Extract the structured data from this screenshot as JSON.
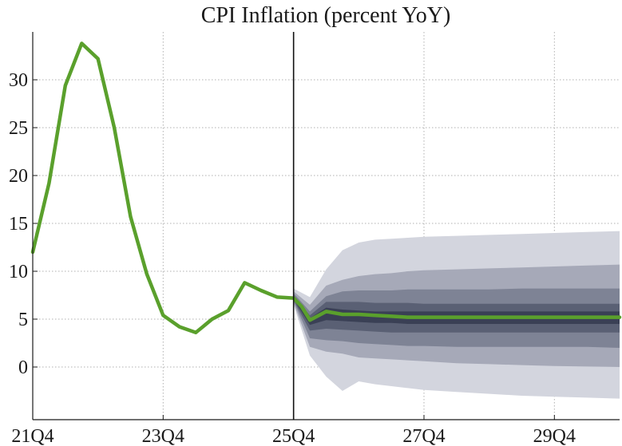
{
  "chart_data": {
    "type": "line",
    "title": "CPI Inflation (percent YoY)",
    "xlabel": "",
    "ylabel": "",
    "x_ticks": [
      "21Q4",
      "23Q4",
      "25Q4",
      "27Q4",
      "29Q4"
    ],
    "y_ticks": [
      0,
      5,
      10,
      15,
      20,
      25,
      30
    ],
    "xlim": [
      0,
      36
    ],
    "ylim": [
      -5.5,
      35
    ],
    "forecast_start": 16,
    "grid": true,
    "series": [
      {
        "name": "CPI inflation",
        "color": "#5aa02c",
        "x": [
          0,
          1,
          2,
          3,
          4,
          5,
          6,
          7,
          8,
          9,
          10,
          11,
          12,
          13,
          14,
          15,
          16,
          16.5,
          17,
          18,
          19,
          20,
          21,
          22,
          23,
          24,
          25,
          26,
          27,
          28,
          29,
          30,
          31,
          32,
          33,
          34,
          35,
          36
        ],
        "values": [
          12,
          19.2,
          29.4,
          33.8,
          32.2,
          25,
          15.7,
          9.7,
          5.4,
          4.2,
          3.6,
          5,
          5.9,
          8.8,
          8,
          7.3,
          7.2,
          6.3,
          4.9,
          5.8,
          5.5,
          5.5,
          5.4,
          5.3,
          5.2,
          5.2,
          5.2,
          5.2,
          5.2,
          5.2,
          5.2,
          5.2,
          5.2,
          5.2,
          5.2,
          5.2,
          5.2,
          5.2
        ]
      }
    ],
    "fan_chart": {
      "x": [
        16,
        17,
        18,
        19,
        20,
        21,
        22,
        23,
        24,
        26,
        28,
        30,
        32,
        34,
        36
      ],
      "bands": [
        {
          "color": "#d3d5de",
          "lower": [
            6.5,
            1.2,
            -1,
            -2.5,
            -1.5,
            -1.8,
            -2.0,
            -2.2,
            -2.4,
            -2.6,
            -2.8,
            -3.0,
            -3.1,
            -3.2,
            -3.3
          ],
          "upper": [
            8.2,
            7.3,
            10.2,
            12.2,
            13.0,
            13.3,
            13.4,
            13.5,
            13.6,
            13.7,
            13.8,
            13.9,
            14.0,
            14.1,
            14.2
          ]
        },
        {
          "color": "#a6a9b8",
          "lower": [
            6.7,
            2.1,
            1.6,
            1.4,
            1.0,
            0.9,
            0.8,
            0.7,
            0.6,
            0.4,
            0.3,
            0.2,
            0.1,
            0.05,
            0.0
          ],
          "upper": [
            7.9,
            6.5,
            8.5,
            9.1,
            9.5,
            9.7,
            9.8,
            10.0,
            10.1,
            10.2,
            10.3,
            10.4,
            10.5,
            10.6,
            10.7
          ]
        },
        {
          "color": "#7e8395",
          "lower": [
            6.9,
            3.0,
            2.8,
            2.7,
            2.5,
            2.4,
            2.3,
            2.2,
            2.2,
            2.1,
            2.1,
            2.1,
            2.1,
            2.1,
            2.0
          ],
          "upper": [
            7.7,
            5.8,
            7.4,
            7.9,
            8.0,
            8.0,
            8.0,
            8.1,
            8.1,
            8.1,
            8.1,
            8.2,
            8.2,
            8.2,
            8.2
          ]
        },
        {
          "color": "#5a6074",
          "lower": [
            7.0,
            3.8,
            4.0,
            3.9,
            3.8,
            3.7,
            3.6,
            3.6,
            3.6,
            3.6,
            3.6,
            3.6,
            3.6,
            3.6,
            3.6
          ],
          "upper": [
            7.5,
            5.4,
            6.8,
            6.8,
            6.8,
            6.7,
            6.7,
            6.7,
            6.6,
            6.6,
            6.6,
            6.6,
            6.6,
            6.6,
            6.6
          ]
        },
        {
          "color": "#3a4055",
          "lower": [
            7.1,
            4.4,
            4.9,
            4.8,
            4.7,
            4.6,
            4.6,
            4.5,
            4.5,
            4.5,
            4.5,
            4.5,
            4.5,
            4.5,
            4.5
          ],
          "upper": [
            7.3,
            5.1,
            6.2,
            6.0,
            5.9,
            5.8,
            5.8,
            5.8,
            5.8,
            5.8,
            5.8,
            5.8,
            5.8,
            5.8,
            5.8
          ]
        }
      ]
    }
  }
}
